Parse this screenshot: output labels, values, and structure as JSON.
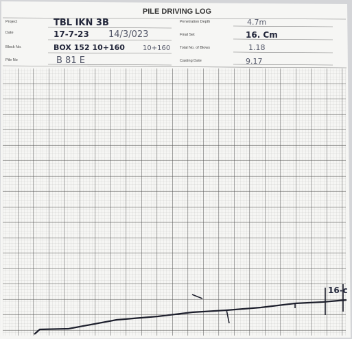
{
  "header": {
    "title": "PILE DRIVING LOG"
  },
  "fields": [
    {
      "label": "Project",
      "values": [
        "TBL IKN 3B"
      ]
    },
    {
      "label": "Date",
      "values": [
        "17-7-23",
        "14/3/023"
      ]
    },
    {
      "label": "Block No.",
      "values": [
        "BOX 152 10+160",
        "10+160"
      ]
    },
    {
      "label": "Pile No",
      "values": [
        "B 81 E"
      ]
    },
    {
      "label": "Penetration Depth",
      "values": [
        "4.7m"
      ]
    },
    {
      "label": "Final Set",
      "values": [
        "16. Cm"
      ]
    },
    {
      "label": "Total No. of Blows",
      "values": [
        "1.18"
      ]
    },
    {
      "label": "Casting Date",
      "values": [
        "9.17"
      ]
    }
  ],
  "annotation": "16-c"
}
